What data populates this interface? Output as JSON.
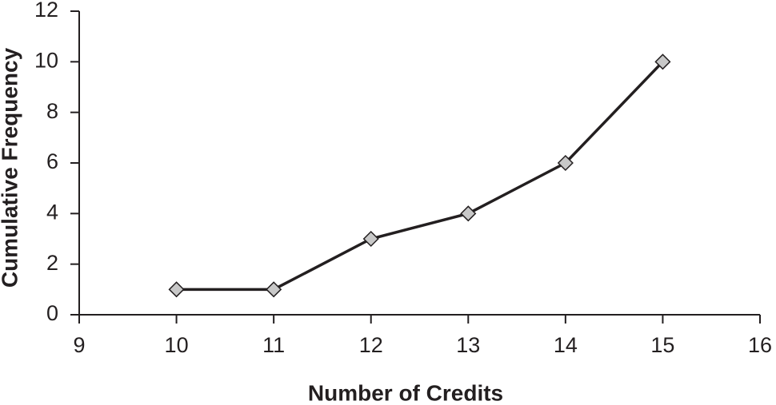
{
  "chart_data": {
    "type": "line",
    "xlabel": "Number of Credits",
    "ylabel": "Cumulative Frequency",
    "x": [
      10,
      11,
      12,
      13,
      14,
      15
    ],
    "values": [
      1,
      1,
      3,
      4,
      6,
      10
    ],
    "color": "#231f20",
    "marker_color": "#c8c8c8",
    "xlim": [
      9,
      16
    ],
    "xticks": [
      9,
      10,
      11,
      12,
      13,
      14,
      15,
      16
    ],
    "ylim": [
      0,
      12
    ],
    "yticks": [
      0,
      2,
      4,
      6,
      8,
      10,
      12
    ]
  }
}
